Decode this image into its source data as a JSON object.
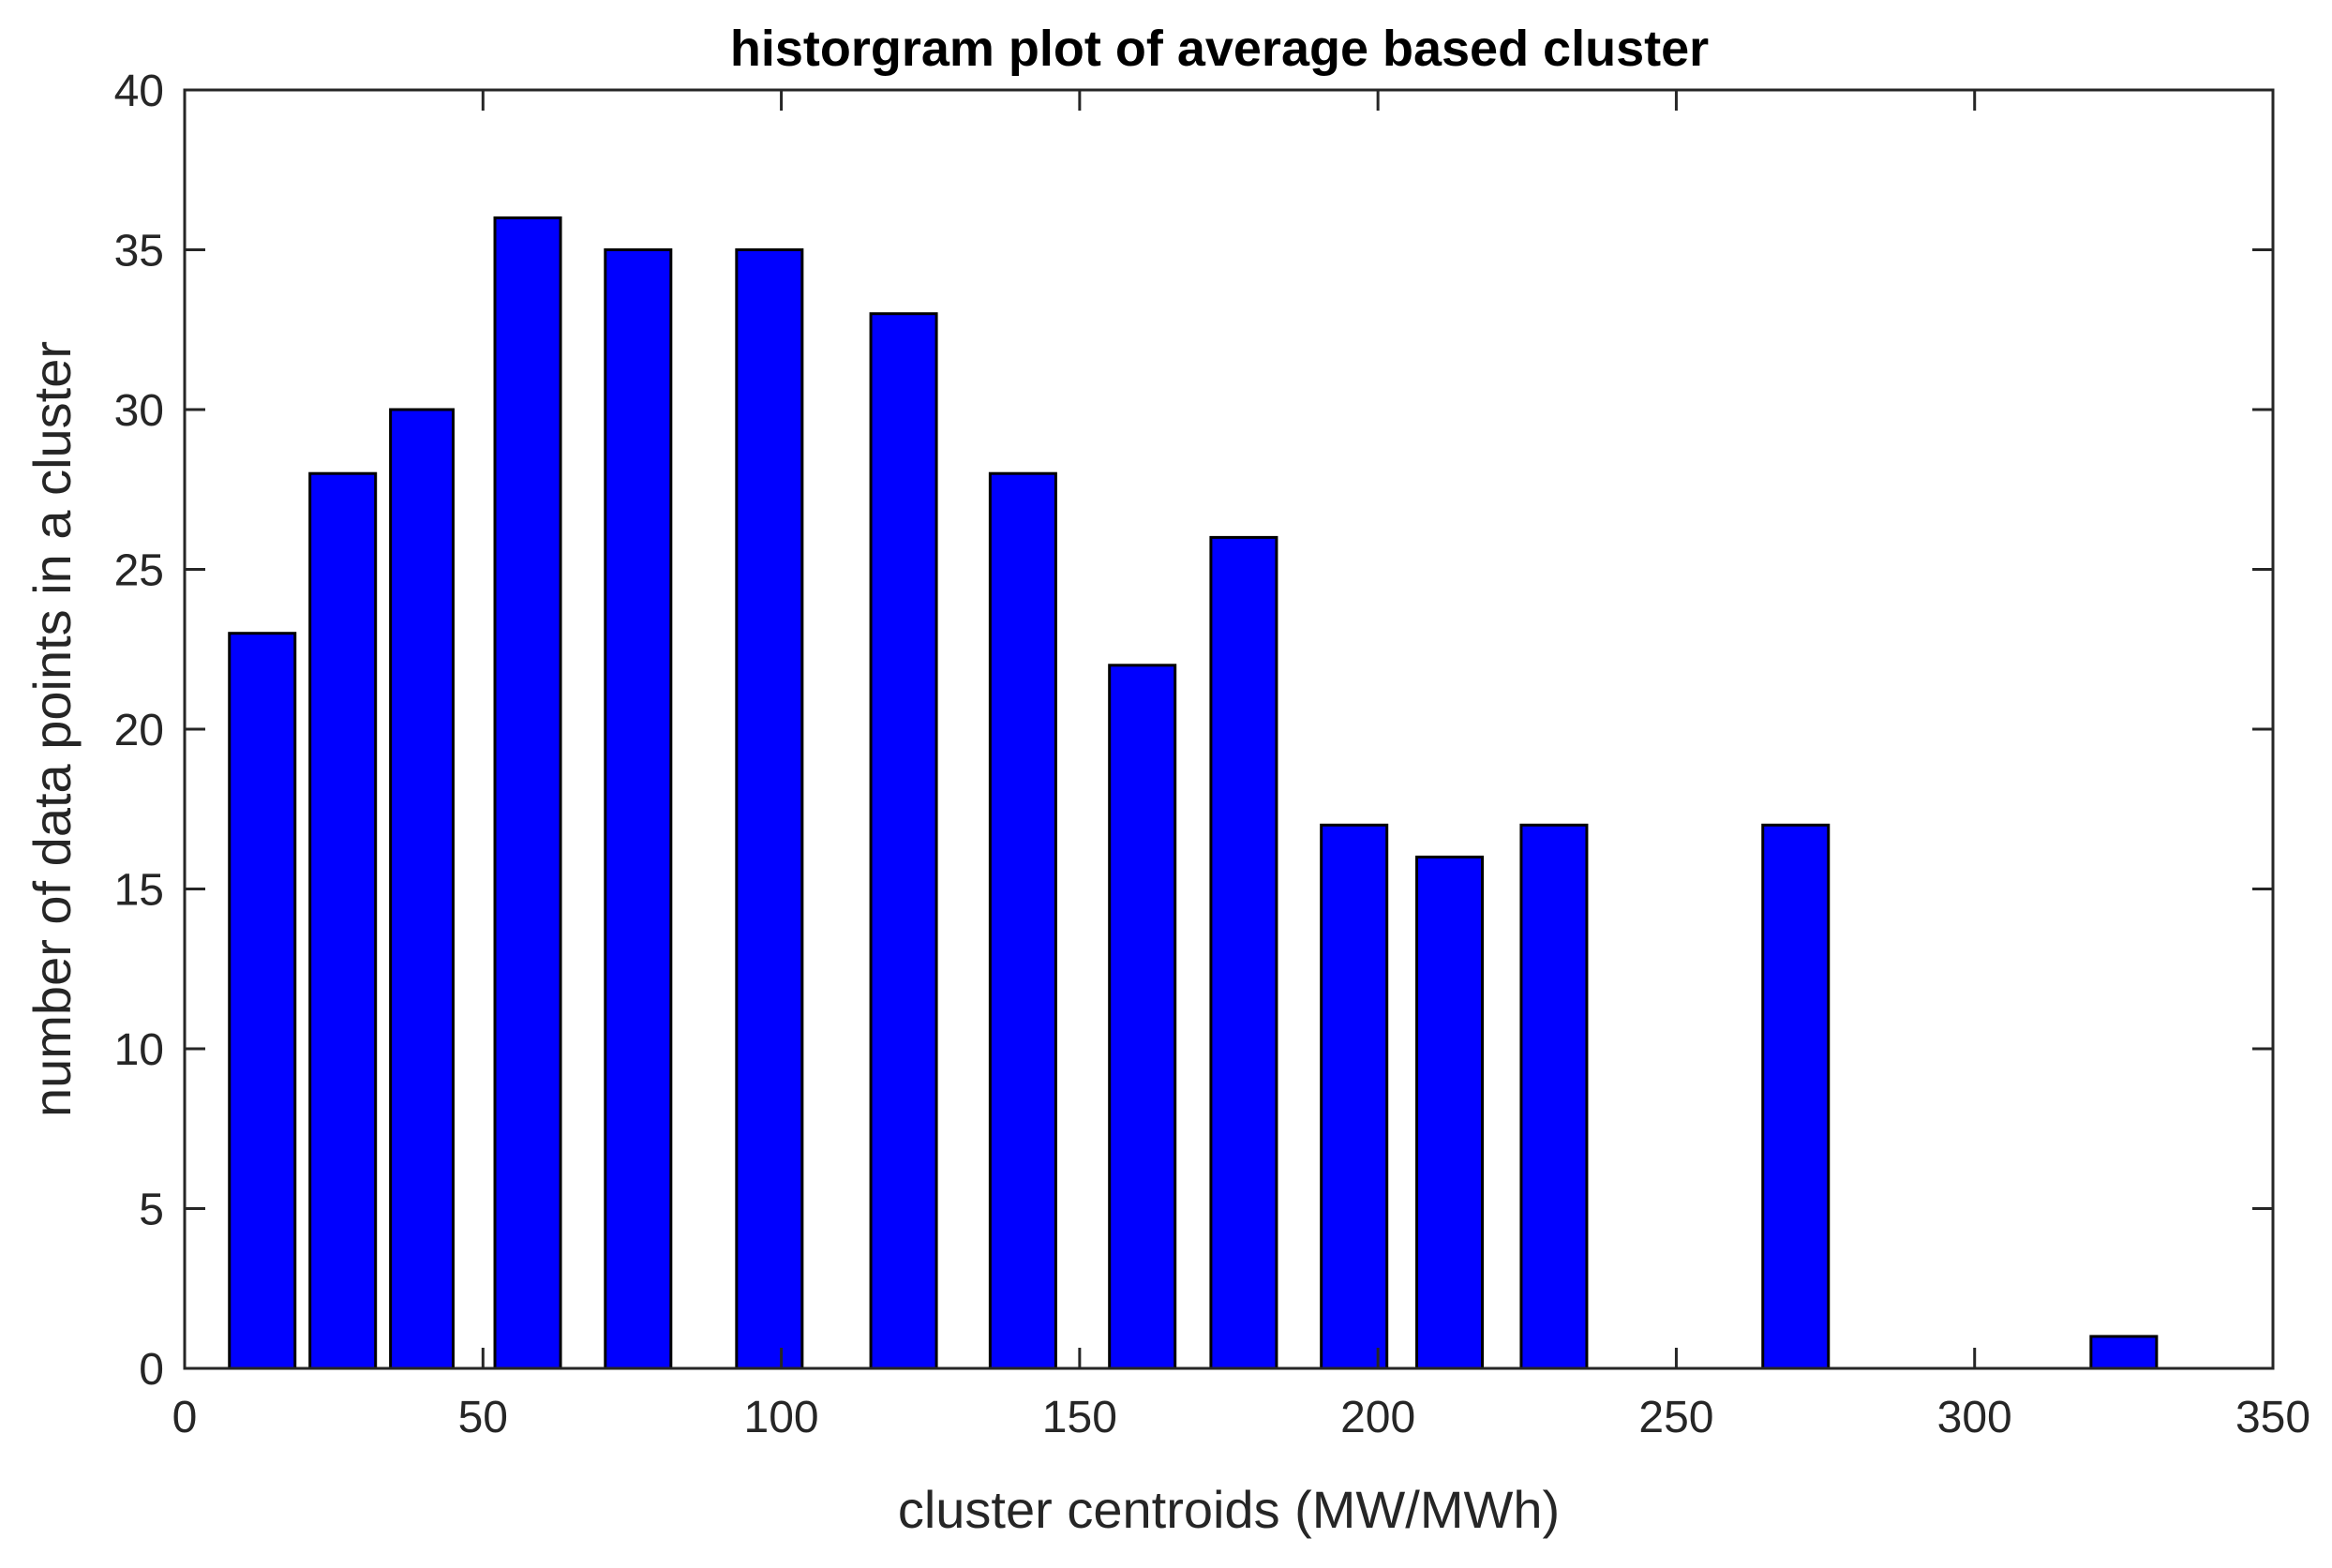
{
  "chart_data": {
    "type": "bar",
    "title": "historgram plot of average based cluster",
    "xlabel": "cluster centroids (MW/MWh)",
    "ylabel": "number of data points in a cluster",
    "xlim": [
      0,
      350
    ],
    "ylim": [
      0,
      40
    ],
    "xticks": [
      0,
      50,
      100,
      150,
      200,
      250,
      300,
      350
    ],
    "yticks": [
      0,
      5,
      10,
      15,
      20,
      25,
      30,
      35,
      40
    ],
    "bar_color": "#0000FF",
    "grid": false,
    "bars": [
      {
        "x0": 7.5,
        "x1": 18.5,
        "value": 23
      },
      {
        "x0": 21,
        "x1": 32,
        "value": 28
      },
      {
        "x0": 34.5,
        "x1": 45,
        "value": 30
      },
      {
        "x0": 52,
        "x1": 63,
        "value": 36
      },
      {
        "x0": 70.5,
        "x1": 81.5,
        "value": 35
      },
      {
        "x0": 92.5,
        "x1": 103.5,
        "value": 35
      },
      {
        "x0": 115,
        "x1": 126,
        "value": 33
      },
      {
        "x0": 135,
        "x1": 146,
        "value": 28
      },
      {
        "x0": 155,
        "x1": 166,
        "value": 22
      },
      {
        "x0": 172,
        "x1": 183,
        "value": 26
      },
      {
        "x0": 190.5,
        "x1": 201.5,
        "value": 17
      },
      {
        "x0": 206.5,
        "x1": 217.5,
        "value": 16
      },
      {
        "x0": 224,
        "x1": 235,
        "value": 17
      },
      {
        "x0": 264.5,
        "x1": 275.5,
        "value": 17
      },
      {
        "x0": 319.5,
        "x1": 330.5,
        "value": 1
      }
    ]
  }
}
